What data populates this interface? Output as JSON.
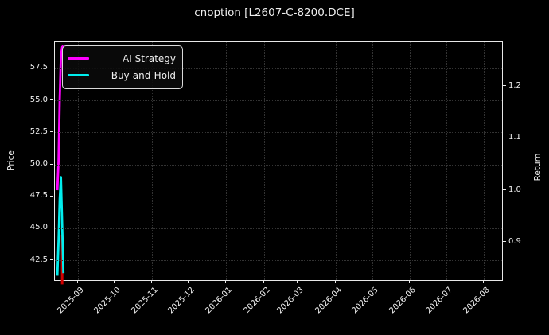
{
  "title": "cnoption [L2607-C-8200.DCE]",
  "colors": {
    "background": "#000000",
    "foreground": "#efefef",
    "grid": "#333333",
    "spine": "#e8e8e8",
    "ai_strategy": "#ff00ff",
    "buy_and_hold": "#00eded",
    "marker": "#d40000"
  },
  "chart_data": {
    "type": "line",
    "title": "cnoption [L2607-C-8200.DCE]",
    "grid": true,
    "x_axis": {
      "label": "",
      "range": [
        "2025-08-13",
        "2026-08-16"
      ],
      "tick_dates": [
        "2025-09-01",
        "2025-10-01",
        "2025-11-01",
        "2025-12-01",
        "2026-01-01",
        "2026-02-01",
        "2026-03-01",
        "2026-04-01",
        "2026-05-01",
        "2026-06-01",
        "2026-07-01",
        "2026-08-01"
      ],
      "tick_labels": [
        "2025-09",
        "2025-10",
        "2025-11",
        "2025-12",
        "2026-01",
        "2026-02",
        "2026-03",
        "2026-04",
        "2026-05",
        "2026-06",
        "2026-07",
        "2026-08"
      ],
      "tick_rotation_deg": 45
    },
    "left_axis": {
      "label": "Price",
      "ticks": [
        57.5,
        55.0,
        52.5,
        50.0,
        47.5,
        45.0,
        42.5
      ],
      "tick_labels": [
        "57.5",
        "55.0",
        "52.5",
        "50.0",
        "47.5",
        "45.0",
        "42.5"
      ],
      "range": [
        40.95,
        59.55
      ]
    },
    "right_axis": {
      "label": "Return",
      "ticks": [
        1.2,
        1.1,
        1.0,
        0.9
      ],
      "tick_labels": [
        "1.2",
        "1.1",
        "1.0",
        "0.9"
      ],
      "range": [
        0.827,
        1.285
      ]
    },
    "legend": {
      "position": "upper-left"
    },
    "series": [
      {
        "name": "AI Strategy",
        "color": "#ff00ff",
        "axis": "right",
        "points": [
          [
            "2025-08-15",
            1.0
          ],
          [
            "2025-08-16",
            1.055
          ],
          [
            "2025-08-17",
            1.175
          ],
          [
            "2025-08-18",
            1.258
          ],
          [
            "2025-08-19",
            1.276
          ],
          [
            "2025-08-20",
            1.278
          ]
        ]
      },
      {
        "name": "Buy-and-Hold",
        "color": "#00eded",
        "axis": "left",
        "points": [
          [
            "2025-08-15",
            41.3
          ],
          [
            "2025-08-16",
            44.0
          ],
          [
            "2025-08-17",
            47.3
          ],
          [
            "2025-08-18",
            49.0
          ],
          [
            "2025-08-19",
            45.2
          ],
          [
            "2025-08-20",
            41.5
          ]
        ]
      }
    ],
    "marker": {
      "color": "#d40000",
      "axis": "left",
      "date": "2025-08-19",
      "price_from": 44.5,
      "price_to": 40.8
    }
  }
}
